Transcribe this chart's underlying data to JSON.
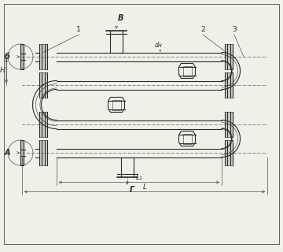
{
  "bg_color": "#f0efe8",
  "line_color": "#2a2a2a",
  "fig_width": 3.6,
  "fig_height": 3.2,
  "dpi": 100,
  "labels": {
    "B": "В",
    "b": "б",
    "H": "Н",
    "A": "А",
    "G": "Г",
    "L1": "L₁",
    "L": "L",
    "d": "dн",
    "1": "1",
    "2": "2",
    "3": "3"
  }
}
